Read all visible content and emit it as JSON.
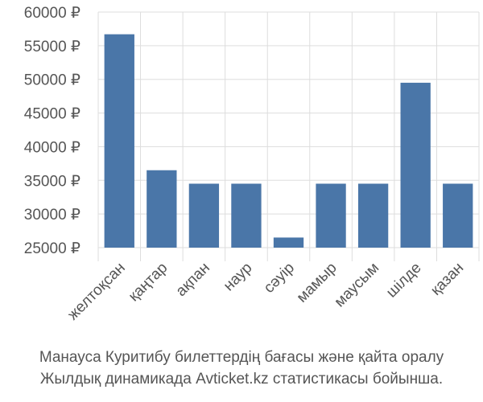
{
  "chart_data": {
    "type": "bar",
    "categories": [
      "желтоқсан",
      "қаңтар",
      "ақпан",
      "наур",
      "сәуір",
      "мамыр",
      "маусым",
      "шілде",
      "қазан"
    ],
    "values": [
      56700,
      36500,
      34500,
      34500,
      26500,
      34500,
      34500,
      49500,
      34500
    ],
    "ylim": [
      25000,
      60000
    ],
    "yticks": [
      25000,
      30000,
      35000,
      40000,
      45000,
      50000,
      55000,
      60000
    ],
    "ytick_labels": [
      "25000 ₽",
      "30000 ₽",
      "35000 ₽",
      "40000 ₽",
      "45000 ₽",
      "50000 ₽",
      "55000 ₽",
      "60000 ₽"
    ],
    "grid": true,
    "bar_color": "#4a76a8",
    "grid_color": "#dddddd",
    "axis_text_color": "#555555"
  },
  "caption": {
    "line1": "Манауса Куритибу билеттердің бағасы және қайта оралу",
    "line2": "Жылдық динамикада Avticket.kz статистикасы бойынша."
  }
}
